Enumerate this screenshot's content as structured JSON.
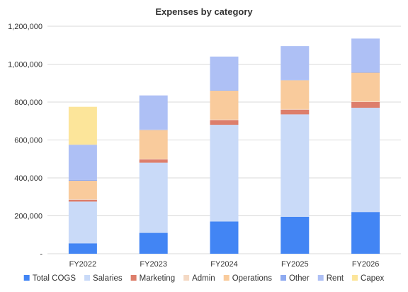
{
  "chart_data": {
    "type": "bar",
    "stacked": true,
    "title": "Expenses by category",
    "xlabel": "",
    "ylabel": "",
    "categories": [
      "FY2022",
      "FY2023",
      "FY2024",
      "FY2025",
      "FY2026"
    ],
    "ylim": [
      0,
      1200000
    ],
    "yticks": [
      0,
      200000,
      400000,
      600000,
      800000,
      1000000,
      1200000
    ],
    "ytick_labels": [
      "-",
      "200,000",
      "400,000",
      "600,000",
      "800,000",
      "1,000,000",
      "1,200,000"
    ],
    "grid": true,
    "legend_position": "bottom",
    "series": [
      {
        "name": "Total COGS",
        "color": "#4285f4",
        "values": [
          55000,
          110000,
          170000,
          195000,
          220000
        ]
      },
      {
        "name": "Salaries",
        "color": "#c9daf8",
        "values": [
          220000,
          370000,
          510000,
          540000,
          550000
        ]
      },
      {
        "name": "Marketing",
        "color": "#dd7e6b",
        "values": [
          10000,
          18000,
          25000,
          25000,
          30000
        ]
      },
      {
        "name": "Admin",
        "color": "#f4d9c4",
        "values": [
          3000,
          3000,
          3000,
          3000,
          3000
        ]
      },
      {
        "name": "Operations",
        "color": "#f9cb9c",
        "values": [
          97000,
          152000,
          152000,
          152000,
          152000
        ]
      },
      {
        "name": "Other",
        "color": "#8eaaf0",
        "values": [
          5000,
          2000,
          2000,
          2000,
          2000
        ]
      },
      {
        "name": "Rent",
        "color": "#aec0f5",
        "values": [
          185000,
          180000,
          178000,
          178000,
          178000
        ]
      },
      {
        "name": "Capex",
        "color": "#fce59a",
        "values": [
          200000,
          0,
          0,
          0,
          0
        ]
      }
    ]
  }
}
